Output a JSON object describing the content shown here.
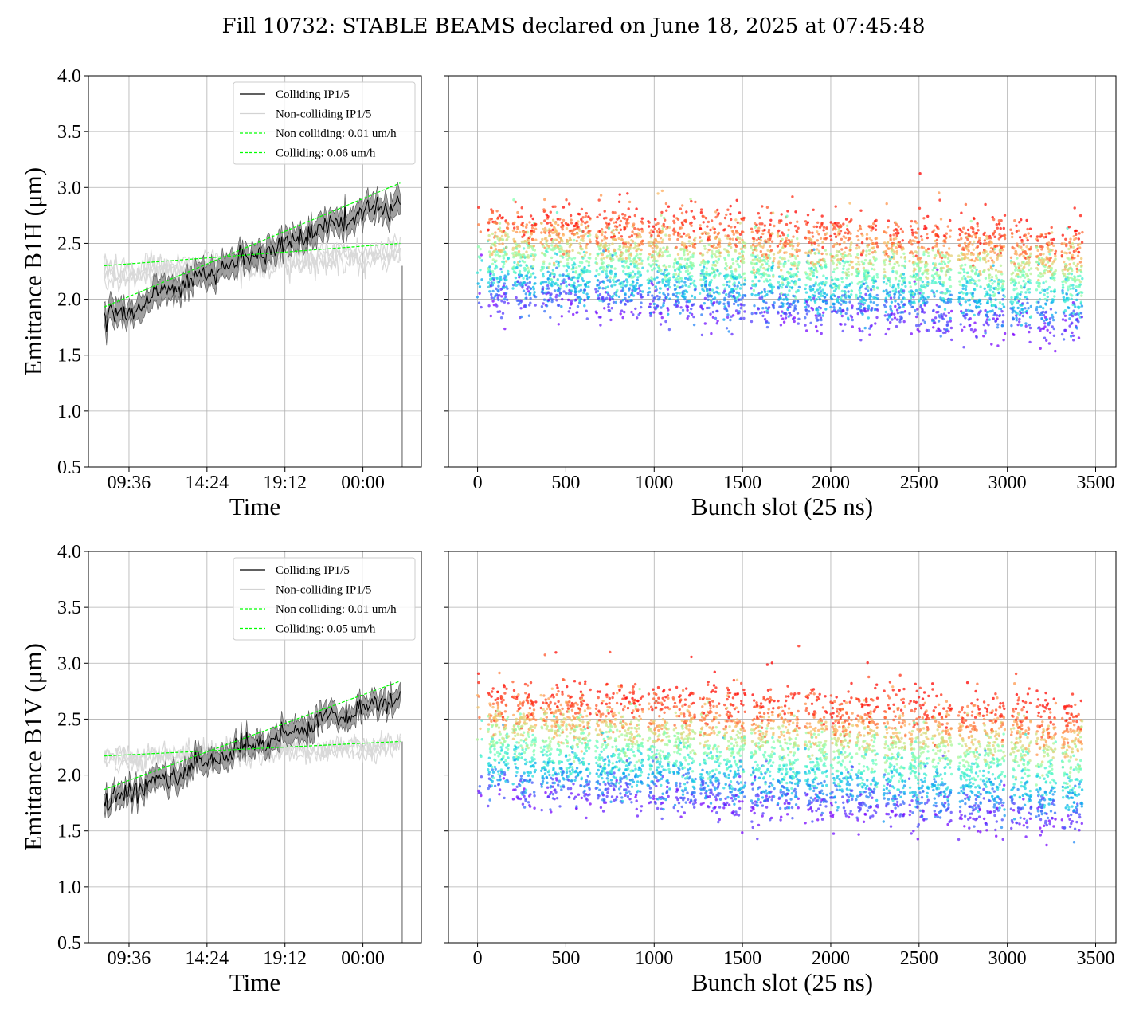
{
  "figure": {
    "title": "Fill 10732: STABLE BEAMS declared on June 18, 2025 at 07:45:48"
  },
  "chart_data": [
    {
      "id": "b1h-time",
      "type": "line",
      "xlabel": "Time",
      "ylabel": "Emittance B1H (μm)",
      "x_tick_labels": [
        "09:36",
        "14:24",
        "19:12",
        "00:00"
      ],
      "x_ticks_hours": [
        9.6,
        14.4,
        19.2,
        24.0
      ],
      "xlim_hours": [
        7.1,
        27.6
      ],
      "ylim": [
        0.5,
        4.0
      ],
      "y_ticks": [
        "0.5",
        "1.0",
        "1.5",
        "2.0",
        "2.5",
        "3.0",
        "3.5",
        "4.0"
      ],
      "grid": true,
      "legend_position": "upper right",
      "legend": [
        "Colliding IP1/5",
        "Non-colliding IP1/5",
        "Non colliding: 0.01 um/h",
        "Colliding: 0.06 um/h"
      ],
      "series": [
        {
          "name": "Colliding IP1/5",
          "color": "#000000",
          "t_start": 8.05,
          "t_end": 26.3,
          "v_start": 1.78,
          "v_end": 2.88,
          "band": 0.09
        },
        {
          "name": "Non-colliding IP1/5",
          "color": "#d3d3d3",
          "t_start": 8.05,
          "t_end": 26.3,
          "v_start": 2.22,
          "v_end": 2.42,
          "band": 0.1
        },
        {
          "name": "Non colliding: 0.01 um/h",
          "color": "#00ff00",
          "dashed": true,
          "t_start": 8.05,
          "t_end": 26.3,
          "v_start": 2.3,
          "v_end": 2.5
        },
        {
          "name": "Colliding: 0.06 um/h",
          "color": "#00ff00",
          "dashed": true,
          "t_start": 8.05,
          "t_end": 26.3,
          "v_start": 1.93,
          "v_end": 3.04
        }
      ]
    },
    {
      "id": "b1h-bunch",
      "type": "scatter",
      "xlabel": "Bunch slot (25 ns)",
      "x_ticks": [
        "0",
        "500",
        "1000",
        "1500",
        "2000",
        "2500",
        "3000",
        "3500"
      ],
      "xlim": [
        -165,
        3615
      ],
      "ylim": [
        0.5,
        4.0
      ],
      "grid": true,
      "colormap": "rainbow",
      "trains": [
        [
          0,
          25
        ],
        [
          60,
          175
        ],
        [
          200,
          330
        ],
        [
          360,
          490
        ],
        [
          500,
          640
        ],
        [
          670,
          790
        ],
        [
          800,
          935
        ],
        [
          965,
          1090
        ],
        [
          1110,
          1235
        ],
        [
          1260,
          1375
        ],
        [
          1395,
          1515
        ],
        [
          1550,
          1680
        ],
        [
          1700,
          1820
        ],
        [
          1855,
          1980
        ],
        [
          2000,
          2125
        ],
        [
          2145,
          2265
        ],
        [
          2300,
          2425
        ],
        [
          2445,
          2555
        ],
        [
          2575,
          2685
        ],
        [
          2725,
          2850
        ],
        [
          2865,
          2985
        ],
        [
          3020,
          3135
        ],
        [
          3165,
          3275
        ],
        [
          3310,
          3425
        ]
      ],
      "emittance_start": {
        "top": 2.75,
        "mid": 2.3,
        "bottom": 1.97
      },
      "emittance_end": {
        "top": 2.6,
        "mid": 2.25,
        "bottom": 1.72
      },
      "max_value": 3.47,
      "min_value": 1.52
    },
    {
      "id": "b1v-time",
      "type": "line",
      "xlabel": "Time",
      "ylabel": "Emittance B1V (μm)",
      "x_tick_labels": [
        "09:36",
        "14:24",
        "19:12",
        "00:00"
      ],
      "x_ticks_hours": [
        9.6,
        14.4,
        19.2,
        24.0
      ],
      "xlim_hours": [
        7.1,
        27.6
      ],
      "ylim": [
        0.5,
        4.0
      ],
      "y_ticks": [
        "0.5",
        "1.0",
        "1.5",
        "2.0",
        "2.5",
        "3.0",
        "3.5",
        "4.0"
      ],
      "grid": true,
      "legend_position": "upper right",
      "legend": [
        "Colliding IP1/5",
        "Non-colliding IP1/5",
        "Non colliding: 0.01 um/h",
        "Colliding: 0.05 um/h"
      ],
      "series": [
        {
          "name": "Colliding IP1/5",
          "color": "#000000",
          "t_start": 8.05,
          "t_end": 26.3,
          "v_start": 1.72,
          "v_end": 2.7,
          "band": 0.08
        },
        {
          "name": "Non-colliding IP1/5",
          "color": "#d3d3d3",
          "t_start": 8.05,
          "t_end": 26.3,
          "v_start": 2.14,
          "v_end": 2.27,
          "band": 0.08
        },
        {
          "name": "Non colliding: 0.01 um/h",
          "color": "#00ff00",
          "dashed": true,
          "t_start": 8.05,
          "t_end": 26.3,
          "v_start": 2.17,
          "v_end": 2.3
        },
        {
          "name": "Colliding: 0.05 um/h",
          "color": "#00ff00",
          "dashed": true,
          "t_start": 8.05,
          "t_end": 26.3,
          "v_start": 1.87,
          "v_end": 2.84
        }
      ]
    },
    {
      "id": "b1v-bunch",
      "type": "scatter",
      "xlabel": "Bunch slot (25 ns)",
      "x_ticks": [
        "0",
        "500",
        "1000",
        "1500",
        "2000",
        "2500",
        "3000",
        "3500"
      ],
      "xlim": [
        -165,
        3615
      ],
      "ylim": [
        0.5,
        4.0
      ],
      "grid": true,
      "colormap": "rainbow",
      "trains": [
        [
          0,
          25
        ],
        [
          60,
          175
        ],
        [
          200,
          330
        ],
        [
          360,
          490
        ],
        [
          500,
          640
        ],
        [
          670,
          790
        ],
        [
          800,
          935
        ],
        [
          965,
          1090
        ],
        [
          1110,
          1235
        ],
        [
          1260,
          1375
        ],
        [
          1395,
          1515
        ],
        [
          1550,
          1680
        ],
        [
          1700,
          1820
        ],
        [
          1855,
          1980
        ],
        [
          2000,
          2125
        ],
        [
          2145,
          2265
        ],
        [
          2300,
          2425
        ],
        [
          2445,
          2555
        ],
        [
          2575,
          2685
        ],
        [
          2725,
          2850
        ],
        [
          2865,
          2985
        ],
        [
          3020,
          3135
        ],
        [
          3165,
          3275
        ],
        [
          3310,
          3425
        ]
      ],
      "emittance_start": {
        "top": 2.75,
        "mid": 2.3,
        "bottom": 1.82
      },
      "emittance_end": {
        "top": 2.6,
        "mid": 2.2,
        "bottom": 1.55
      },
      "max_value": 3.2,
      "min_value": 1.37
    }
  ]
}
